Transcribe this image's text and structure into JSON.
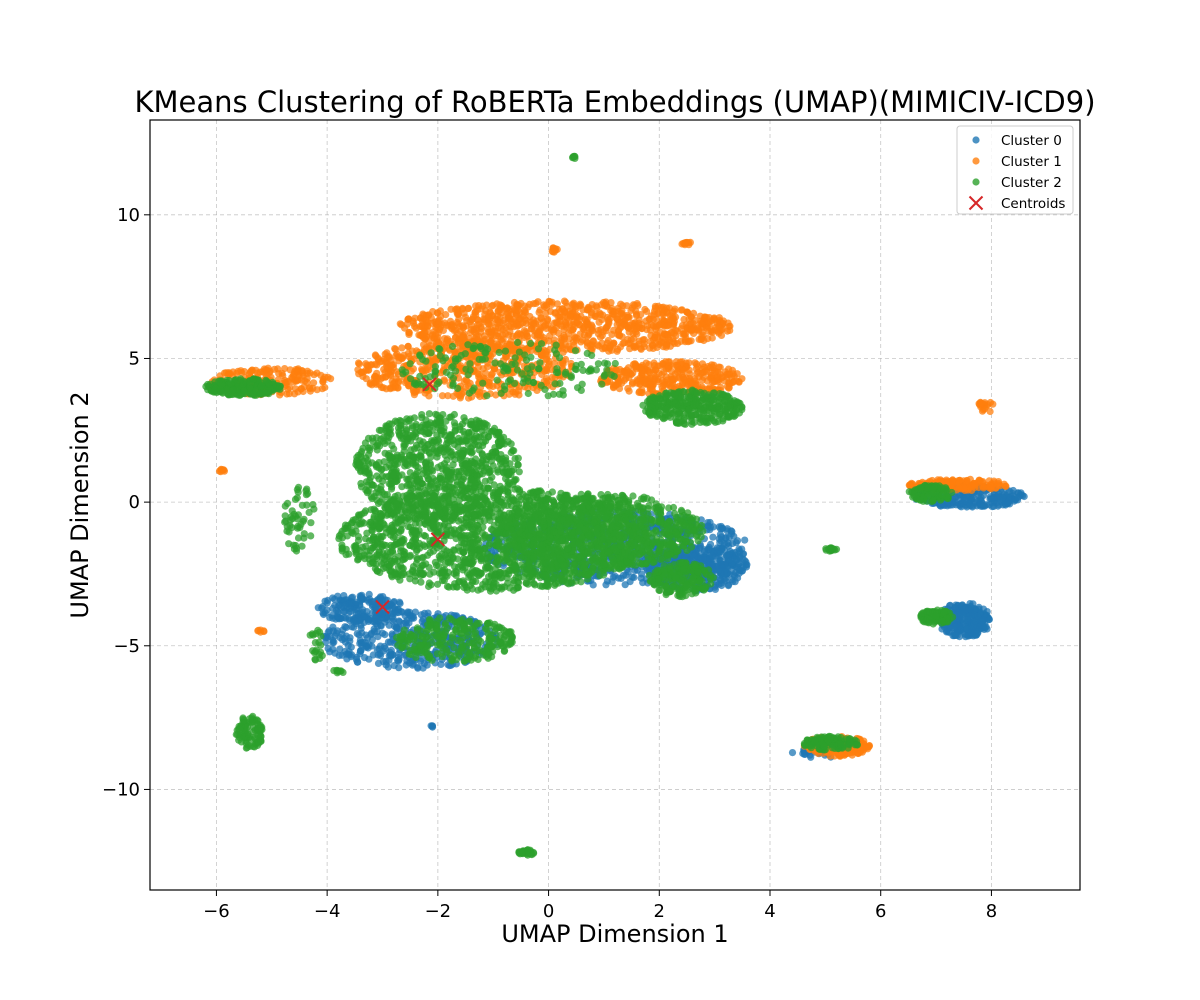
{
  "chart_data": {
    "type": "scatter",
    "title": "KMeans Clustering of RoBERTa Embeddings (UMAP)(MIMICIV-ICD9)",
    "xlabel": "UMAP Dimension 1",
    "ylabel": "UMAP Dimension 2",
    "xlim": [
      -7.2,
      9.6
    ],
    "ylim": [
      -13.5,
      13.3
    ],
    "xticks": [
      -6,
      -4,
      -2,
      0,
      2,
      4,
      6,
      8
    ],
    "yticks": [
      -10,
      -5,
      0,
      5,
      10
    ],
    "xtick_labels": [
      "−6",
      "−4",
      "−2",
      "0",
      "2",
      "4",
      "6",
      "8"
    ],
    "ytick_labels": [
      "−10",
      "−5",
      "0",
      "5",
      "10"
    ],
    "grid": true,
    "legend_position": "top-right",
    "series": [
      {
        "name": "Cluster 0",
        "color": "#1f77b4",
        "regions": [
          {
            "cx": 1.2,
            "cy": -1.6,
            "rx": 2.4,
            "ry": 1.3,
            "n": 700
          },
          {
            "cx": 2.7,
            "cy": -2.3,
            "rx": 0.9,
            "ry": 0.8,
            "n": 320
          },
          {
            "cx": -2.5,
            "cy": -4.8,
            "rx": 1.6,
            "ry": 1.0,
            "n": 420
          },
          {
            "cx": -3.4,
            "cy": -3.7,
            "rx": 0.8,
            "ry": 0.5,
            "n": 160
          },
          {
            "cx": 7.5,
            "cy": -4.1,
            "rx": 0.5,
            "ry": 0.6,
            "n": 260
          },
          {
            "cx": 7.6,
            "cy": 0.2,
            "rx": 1.0,
            "ry": 0.4,
            "n": 260
          },
          {
            "cx": 4.9,
            "cy": -8.7,
            "rx": 0.5,
            "ry": 0.2,
            "n": 50
          },
          {
            "cx": -2.1,
            "cy": -7.8,
            "rx": 0.03,
            "ry": 0.03,
            "n": 4
          }
        ]
      },
      {
        "name": "Cluster 1",
        "color": "#ff7f0e",
        "regions": [
          {
            "cx": 0.3,
            "cy": 6.1,
            "rx": 3.0,
            "ry": 0.9,
            "n": 900
          },
          {
            "cx": -1.5,
            "cy": 4.6,
            "rx": 2.0,
            "ry": 1.0,
            "n": 520
          },
          {
            "cx": 2.2,
            "cy": 4.3,
            "rx": 1.3,
            "ry": 0.6,
            "n": 320
          },
          {
            "cx": -5.0,
            "cy": 4.2,
            "rx": 1.1,
            "ry": 0.5,
            "n": 200
          },
          {
            "cx": 7.4,
            "cy": 0.6,
            "rx": 0.9,
            "ry": 0.2,
            "n": 150
          },
          {
            "cx": 5.2,
            "cy": -8.5,
            "rx": 0.6,
            "ry": 0.35,
            "n": 180
          },
          {
            "cx": 0.1,
            "cy": 8.8,
            "rx": 0.06,
            "ry": 0.1,
            "n": 10
          },
          {
            "cx": 2.5,
            "cy": 9.0,
            "rx": 0.1,
            "ry": 0.05,
            "n": 10
          },
          {
            "cx": 7.9,
            "cy": 3.3,
            "rx": 0.2,
            "ry": 0.2,
            "n": 18
          },
          {
            "cx": -5.9,
            "cy": 1.1,
            "rx": 0.08,
            "ry": 0.05,
            "n": 8
          },
          {
            "cx": -5.2,
            "cy": -4.5,
            "rx": 0.06,
            "ry": 0.05,
            "n": 6
          }
        ]
      },
      {
        "name": "Cluster 2",
        "color": "#2ca02c",
        "regions": [
          {
            "cx": -1.0,
            "cy": -1.3,
            "rx": 2.8,
            "ry": 1.8,
            "n": 1500
          },
          {
            "cx": -2.0,
            "cy": 1.2,
            "rx": 1.5,
            "ry": 1.9,
            "n": 800
          },
          {
            "cx": 0.9,
            "cy": -1.0,
            "rx": 1.9,
            "ry": 1.3,
            "n": 800
          },
          {
            "cx": 2.6,
            "cy": 3.3,
            "rx": 0.9,
            "ry": 0.6,
            "n": 320
          },
          {
            "cx": -5.5,
            "cy": 4.0,
            "rx": 0.7,
            "ry": 0.3,
            "n": 200
          },
          {
            "cx": -1.7,
            "cy": -4.8,
            "rx": 1.1,
            "ry": 0.8,
            "n": 260
          },
          {
            "cx": 2.4,
            "cy": -2.7,
            "rx": 0.6,
            "ry": 0.6,
            "n": 180
          },
          {
            "cx": -0.7,
            "cy": 4.6,
            "rx": 2.0,
            "ry": 1.0,
            "n": 160
          },
          {
            "cx": 6.9,
            "cy": 0.3,
            "rx": 0.4,
            "ry": 0.3,
            "n": 90
          },
          {
            "cx": 7.0,
            "cy": -4.0,
            "rx": 0.3,
            "ry": 0.25,
            "n": 90
          },
          {
            "cx": 5.1,
            "cy": -8.4,
            "rx": 0.5,
            "ry": 0.25,
            "n": 120
          },
          {
            "cx": -5.4,
            "cy": -8.0,
            "rx": 0.25,
            "ry": 0.6,
            "n": 90
          },
          {
            "cx": -0.4,
            "cy": -12.2,
            "rx": 0.15,
            "ry": 0.1,
            "n": 30
          },
          {
            "cx": 5.1,
            "cy": -1.65,
            "rx": 0.12,
            "ry": 0.06,
            "n": 15
          },
          {
            "cx": 0.45,
            "cy": 12.0,
            "rx": 0.05,
            "ry": 0.05,
            "n": 6
          },
          {
            "cx": -3.8,
            "cy": -5.9,
            "rx": 0.1,
            "ry": 0.06,
            "n": 8
          },
          {
            "cx": -4.2,
            "cy": -5.0,
            "rx": 0.15,
            "ry": 0.6,
            "n": 20
          },
          {
            "cx": -4.5,
            "cy": -0.6,
            "rx": 0.3,
            "ry": 1.2,
            "n": 50
          }
        ]
      }
    ],
    "centroids": {
      "name": "Centroids",
      "color": "#d62728",
      "points": [
        {
          "x": -2.15,
          "y": 4.1
        },
        {
          "x": -2.0,
          "y": -1.3
        },
        {
          "x": -3.0,
          "y": -3.65
        }
      ]
    }
  }
}
